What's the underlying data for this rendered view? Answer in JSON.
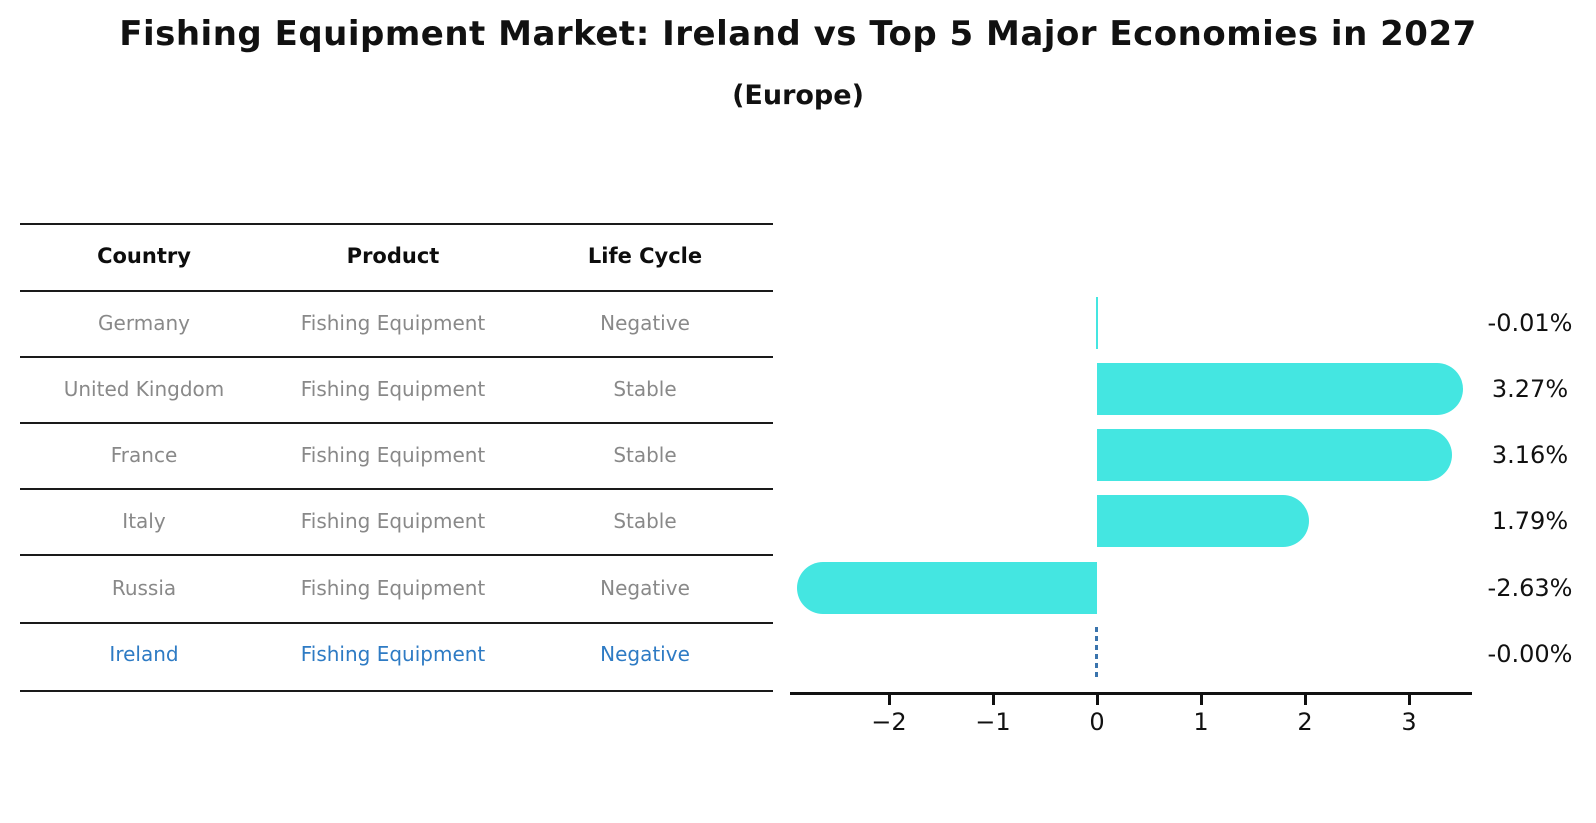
{
  "title": "Fishing Equipment Market: Ireland vs Top 5 Major Economies in 2027",
  "subtitle": "(Europe)",
  "table": {
    "headers": [
      "Country",
      "Product",
      "Life Cycle"
    ],
    "rows": [
      {
        "country": "Germany",
        "product": "Fishing Equipment",
        "life_cycle": "Negative"
      },
      {
        "country": "United Kingdom",
        "product": "Fishing Equipment",
        "life_cycle": "Stable"
      },
      {
        "country": "France",
        "product": "Fishing Equipment",
        "life_cycle": "Stable"
      },
      {
        "country": "Italy",
        "product": "Fishing Equipment",
        "life_cycle": "Stable"
      },
      {
        "country": "Russia",
        "product": "Fishing Equipment",
        "life_cycle": "Negative"
      },
      {
        "country": "Ireland",
        "product": "Fishing Equipment",
        "life_cycle": "Negative"
      }
    ],
    "highlight_row": "Ireland"
  },
  "chart_data": {
    "type": "bar",
    "orientation": "horizontal",
    "title": "Fishing Equipment Market: Ireland vs Top 5 Major Economies in 2027 (Europe)",
    "categories": [
      "Germany",
      "United Kingdom",
      "France",
      "Italy",
      "Russia",
      "Ireland"
    ],
    "values": [
      -0.01,
      3.27,
      3.16,
      1.79,
      -2.63,
      0.0
    ],
    "value_labels": [
      "-0.01%",
      "3.27%",
      "3.16%",
      "1.79%",
      "-2.63%",
      "-0.00%"
    ],
    "unit": "%",
    "xticks": [
      -2,
      -1,
      0,
      1,
      2,
      3
    ],
    "xtick_labels": [
      "−2",
      "−1",
      "0",
      "1",
      "2",
      "3"
    ],
    "xlim": [
      -2.95,
      3.6
    ],
    "grid": false,
    "legend": false,
    "highlight_category": "Ireland"
  },
  "colors": {
    "bar": "#44e6e1",
    "highlight_text": "#2e7bc4",
    "highlight_marker": "#3a74ad",
    "muted_text": "#898989",
    "axis": "#111111"
  }
}
